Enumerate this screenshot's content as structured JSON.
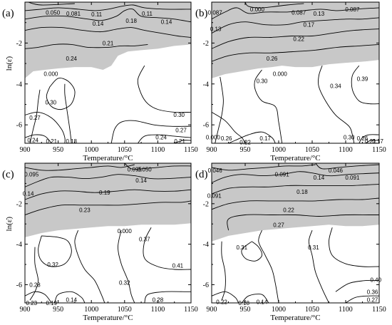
{
  "chart_data": [
    {
      "type": "contour",
      "panel_label": "(a)",
      "xlabel": "Temperature/°C",
      "ylabel": "ln(ε̇)",
      "x_ticks": [
        900,
        950,
        1000,
        1050,
        1100,
        1150
      ],
      "y_ticks": [
        -2,
        -4,
        -6
      ],
      "xlim": [
        900,
        1150
      ],
      "ylim": [
        -6.9,
        0
      ],
      "contour_labels": [
        {
          "text": "0.050",
          "x": 942,
          "y": -0.5
        },
        {
          "text": "0.081",
          "x": 973,
          "y": -0.55
        },
        {
          "text": "0.11",
          "x": 1008,
          "y": -0.6
        },
        {
          "text": "0.11",
          "x": 1084,
          "y": -0.55
        },
        {
          "text": "0.14",
          "x": 1010,
          "y": -1.05
        },
        {
          "text": "0.18",
          "x": 1060,
          "y": -0.9
        },
        {
          "text": "0.14",
          "x": 1113,
          "y": -0.95
        },
        {
          "text": "0.21",
          "x": 1025,
          "y": -2.0
        },
        {
          "text": "0.24",
          "x": 970,
          "y": -2.75
        },
        {
          "text": "0.000",
          "x": 939,
          "y": -3.5
        },
        {
          "text": "0.30",
          "x": 939,
          "y": -4.9
        },
        {
          "text": "0.27",
          "x": 915,
          "y": -5.65
        },
        {
          "text": "0.30",
          "x": 1132,
          "y": -5.5
        },
        {
          "text": "0.27",
          "x": 1135,
          "y": -6.25
        },
        {
          "text": "0.24",
          "x": 1105,
          "y": -6.6
        },
        {
          "text": "0.24",
          "x": 912,
          "y": -6.75
        },
        {
          "text": "0.21",
          "x": 940,
          "y": -6.8
        },
        {
          "text": "0.18",
          "x": 970,
          "y": -6.8
        },
        {
          "text": "0.21",
          "x": 1133,
          "y": -6.8
        }
      ]
    },
    {
      "type": "contour",
      "panel_label": "(b)",
      "xlabel": "Temperature/°C",
      "ylabel": "",
      "x_ticks": [
        900,
        950,
        1000,
        1050,
        1100,
        1150
      ],
      "y_ticks": [
        -2,
        -4,
        -6
      ],
      "xlim": [
        900,
        1150
      ],
      "ylim": [
        -6.9,
        0
      ],
      "contour_labels": [
        {
          "text": "0.087",
          "x": 905,
          "y": -0.5
        },
        {
          "text": "0.000",
          "x": 968,
          "y": -0.35
        },
        {
          "text": "0.087",
          "x": 1030,
          "y": -0.5
        },
        {
          "text": "0.13",
          "x": 1060,
          "y": -0.55
        },
        {
          "text": "0.087",
          "x": 1110,
          "y": -0.35
        },
        {
          "text": "0.13",
          "x": 906,
          "y": -1.3
        },
        {
          "text": "0.17",
          "x": 1045,
          "y": -1.1
        },
        {
          "text": "0.22",
          "x": 1030,
          "y": -1.8
        },
        {
          "text": "0.26",
          "x": 990,
          "y": -2.75
        },
        {
          "text": "0.000",
          "x": 1002,
          "y": -3.5
        },
        {
          "text": "0.30",
          "x": 975,
          "y": -3.85
        },
        {
          "text": "0.39",
          "x": 1125,
          "y": -3.75
        },
        {
          "text": "0.34",
          "x": 1085,
          "y": -4.1
        },
        {
          "text": "0.000",
          "x": 902,
          "y": -6.6
        },
        {
          "text": "0.26",
          "x": 922,
          "y": -6.65
        },
        {
          "text": "0.22",
          "x": 950,
          "y": -6.85
        },
        {
          "text": "0.17",
          "x": 980,
          "y": -6.65
        },
        {
          "text": "0.30",
          "x": 1105,
          "y": -6.6
        },
        {
          "text": "0.26",
          "x": 1125,
          "y": -6.65
        },
        {
          "text": "0.21",
          "x": 1137,
          "y": -6.8
        },
        {
          "text": "0.17",
          "x": 1148,
          "y": -6.8
        }
      ]
    },
    {
      "type": "contour",
      "panel_label": "(c)",
      "xlabel": "Temperature/°C",
      "ylabel": "ln(ε̇)",
      "x_ticks": [
        900,
        950,
        1000,
        1050,
        1100,
        1150
      ],
      "y_ticks": [
        -2,
        -4,
        -6
      ],
      "xlim": [
        900,
        1150
      ],
      "ylim": [
        -6.9,
        0
      ],
      "contour_labels": [
        {
          "text": "0.095",
          "x": 910,
          "y": -0.55
        },
        {
          "text": "0.095",
          "x": 1065,
          "y": -0.3
        },
        {
          "text": "0.050",
          "x": 1080,
          "y": -0.3
        },
        {
          "text": "0.14",
          "x": 1075,
          "y": -0.85
        },
        {
          "text": "0.14",
          "x": 905,
          "y": -1.5
        },
        {
          "text": "0.19",
          "x": 1020,
          "y": -1.45
        },
        {
          "text": "0.23",
          "x": 990,
          "y": -2.3
        },
        {
          "text": "0.000",
          "x": 1050,
          "y": -3.35
        },
        {
          "text": "0.37",
          "x": 1080,
          "y": -3.75
        },
        {
          "text": "0.32",
          "x": 942,
          "y": -5.0
        },
        {
          "text": "0.41",
          "x": 1130,
          "y": -5.05
        },
        {
          "text": "0.32",
          "x": 1050,
          "y": -5.9
        },
        {
          "text": "0.28",
          "x": 915,
          "y": -6.0
        },
        {
          "text": "0.28",
          "x": 1100,
          "y": -6.75
        },
        {
          "text": "0.23",
          "x": 910,
          "y": -6.9
        },
        {
          "text": "0.19",
          "x": 940,
          "y": -6.9
        },
        {
          "text": "0.14",
          "x": 970,
          "y": -6.75
        }
      ]
    },
    {
      "type": "contour",
      "panel_label": "(d)",
      "xlabel": "Temperature/°C",
      "ylabel": "",
      "x_ticks": [
        900,
        950,
        1000,
        1050,
        1100,
        1150
      ],
      "y_ticks": [
        -2,
        -4,
        -6
      ],
      "xlim": [
        900,
        1150
      ],
      "ylim": [
        -6.9,
        0
      ],
      "contour_labels": [
        {
          "text": "0.046",
          "x": 905,
          "y": -0.35
        },
        {
          "text": "0.091",
          "x": 1005,
          "y": -0.55
        },
        {
          "text": "0.046",
          "x": 1085,
          "y": -0.35
        },
        {
          "text": "0.14",
          "x": 1060,
          "y": -0.7
        },
        {
          "text": "0.091",
          "x": 1110,
          "y": -0.7
        },
        {
          "text": "0.091",
          "x": 904,
          "y": -1.6
        },
        {
          "text": "0.18",
          "x": 1035,
          "y": -1.4
        },
        {
          "text": "0.22",
          "x": 1015,
          "y": -2.3
        },
        {
          "text": "0.27",
          "x": 1000,
          "y": -3.05
        },
        {
          "text": "0.31",
          "x": 945,
          "y": -4.15
        },
        {
          "text": "0.31",
          "x": 1052,
          "y": -4.15
        },
        {
          "text": "0.40",
          "x": 1145,
          "y": -5.75
        },
        {
          "text": "0.36",
          "x": 1140,
          "y": -6.35
        },
        {
          "text": "0.27",
          "x": 1140,
          "y": -6.75
        },
        {
          "text": "0.22",
          "x": 915,
          "y": -6.85
        },
        {
          "text": "0.18",
          "x": 948,
          "y": -6.9
        },
        {
          "text": "0.14",
          "x": 975,
          "y": -6.85
        }
      ]
    }
  ]
}
